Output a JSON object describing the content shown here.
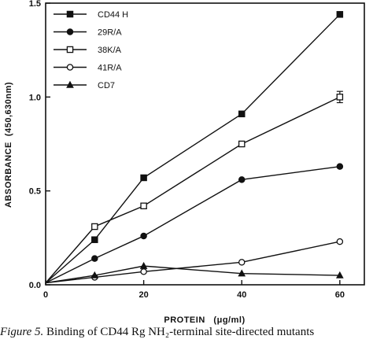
{
  "chart_data": {
    "type": "line",
    "x": [
      0,
      10,
      20,
      40,
      60
    ],
    "series": [
      {
        "name": "CD44 H",
        "marker": "filled-square",
        "values": [
          0.01,
          0.24,
          0.57,
          0.91,
          1.44
        ]
      },
      {
        "name": "29R/A",
        "marker": "filled-circle",
        "values": [
          0.01,
          0.14,
          0.26,
          0.56,
          0.63
        ]
      },
      {
        "name": "38K/A",
        "marker": "open-square",
        "values": [
          0.01,
          0.31,
          0.42,
          0.75,
          1.0
        ],
        "error_bar_at_x60": 0.03
      },
      {
        "name": "41R/A",
        "marker": "open-circle",
        "values": [
          0.01,
          0.04,
          0.07,
          0.12,
          0.23
        ]
      },
      {
        "name": "CD7",
        "marker": "filled-triangle",
        "values": [
          0.01,
          0.05,
          0.1,
          0.06,
          0.05
        ]
      }
    ],
    "xlabel": "PROTEIN   (μg/ml)",
    "ylabel": "ABSORBANCE  (450,630nm)",
    "xlim": [
      0,
      65
    ],
    "ylim": [
      0,
      1.5
    ],
    "xticks": [
      "0",
      "20",
      "40",
      "60"
    ],
    "yticks": [
      "0.0",
      "0.5",
      "1.0",
      "1.5"
    ],
    "grid": false,
    "legend_position": "top-left",
    "line_color": "#111111"
  },
  "caption": {
    "label": "Figure 5.",
    "text": "Binding of CD44 Rg NH₂-terminal site-directed mutants"
  }
}
